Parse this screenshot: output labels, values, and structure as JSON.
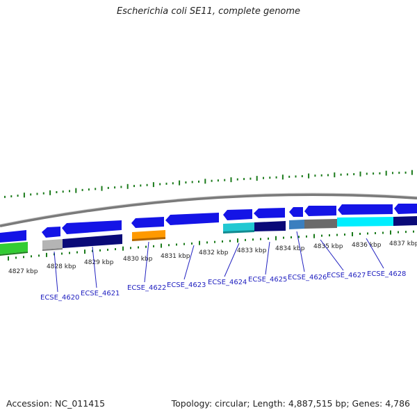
{
  "title": "Escherichia coli SE11, complete genome",
  "footer": {
    "accession": "Accession: NC_011415",
    "summary": "Topology: circular; Length: 4,887,515 bp; Genes: 4,786"
  },
  "kbp_labels": [
    "4827 kbp",
    "4828 kbp",
    "4829 kbp",
    "4830 kbp",
    "4831 kbp",
    "4832 kbp",
    "4833 kbp",
    "4834 kbp",
    "4835 kbp",
    "4836 kbp",
    "4837 kbp"
  ],
  "gene_labels": [
    "ECSE_4620",
    "ECSE_4621",
    "ECSE_4622",
    "ECSE_4623",
    "ECSE_4624",
    "ECSE_4625",
    "ECSE_4626",
    "ECSE_4627",
    "ECSE_4628"
  ],
  "colors": {
    "backbone": "#8a8a8a",
    "cds": "#1414e6",
    "tick": "#1a7a1a",
    "label_link": "#2020c0",
    "cog_green": "#33cc33",
    "cog_grey": "#b4b4b4",
    "cog_navy": "#0a0a78",
    "cog_orange": "#ff9900",
    "cog_cyan": "#22c8d2",
    "cog_steel": "#3a7fbf",
    "cog_darkgrey": "#6a6a6a",
    "cog_aqua": "#00eeff"
  }
}
